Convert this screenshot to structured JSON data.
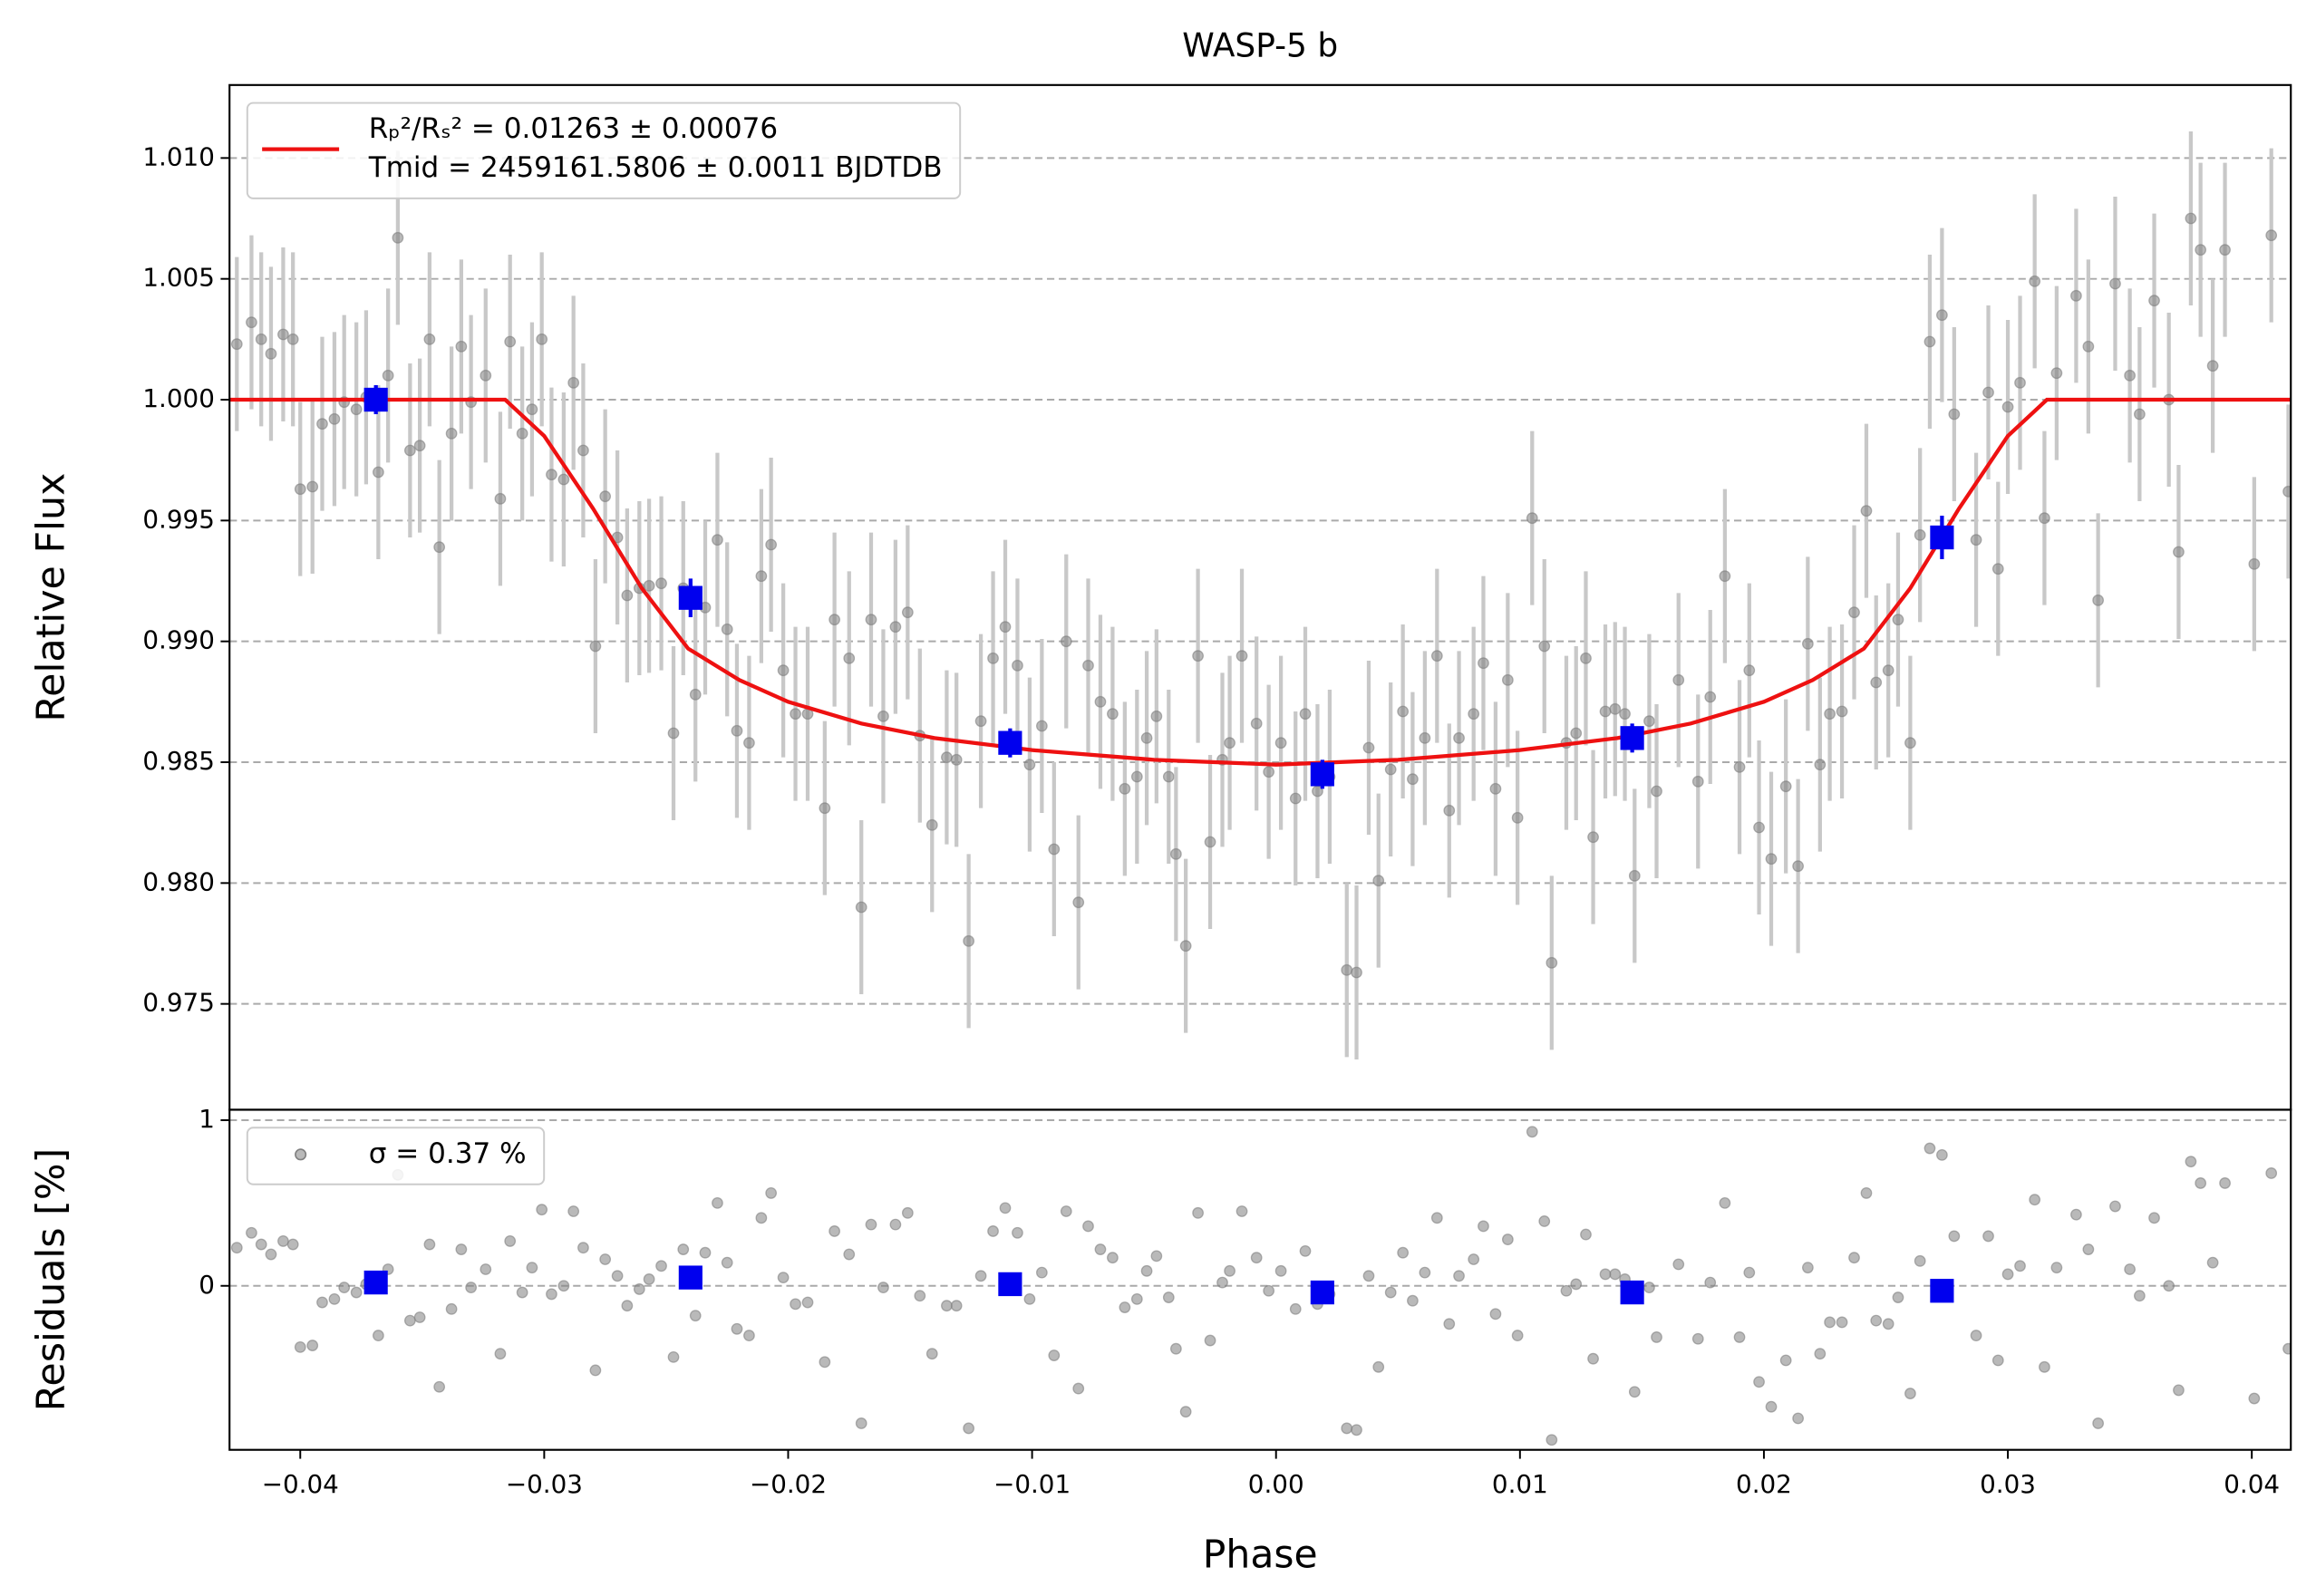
{
  "chart_data": [
    {
      "type": "scatter",
      "title": "WASP-5 b",
      "ylabel": "Relative Flux",
      "grid": true,
      "legend": "upper left",
      "xlim": [
        -0.0429,
        0.0416
      ],
      "ylim": [
        0.97062,
        1.01302
      ],
      "yticks": [
        0.975,
        {
          "value": 0.98,
          "label": "0.980"
        },
        0.985,
        {
          "value": 0.99,
          "label": "0.990"
        },
        0.995,
        {
          "value": 1.0,
          "label": "1.000"
        },
        1.005,
        {
          "value": 1.01,
          "label": "1.010"
        }
      ],
      "series": [
        {
          "type": "scatter",
          "marker": "circle",
          "color": "#808080",
          "errcolor": "#c8c8c8",
          "yerr": 0.0036,
          "x": [
            -0.0426,
            -0.042,
            -0.0416,
            -0.0412,
            -0.0407,
            -0.0403,
            -0.04,
            -0.0395,
            -0.0391,
            -0.0386,
            -0.0382,
            -0.0377,
            -0.0373,
            -0.0368,
            -0.0364,
            -0.036,
            -0.0355,
            -0.0351,
            -0.0347,
            -0.0343,
            -0.0338,
            -0.0334,
            -0.033,
            -0.0324,
            -0.0318,
            -0.0314,
            -0.0309,
            -0.0305,
            -0.0301,
            -0.0297,
            -0.0292,
            -0.0288,
            -0.0284,
            -0.0279,
            -0.0275,
            -0.027,
            -0.0266,
            -0.0261,
            -0.0257,
            -0.0252,
            -0.0247,
            -0.0243,
            -0.0238,
            -0.0234,
            -0.0229,
            -0.0225,
            -0.0221,
            -0.0216,
            -0.0211,
            -0.0207,
            -0.0202,
            -0.0197,
            -0.0192,
            -0.0185,
            -0.0181,
            -0.0175,
            -0.017,
            -0.0166,
            -0.0161,
            -0.0156,
            -0.0151,
            -0.0146,
            -0.0141,
            -0.0135,
            -0.0131,
            -0.0126,
            -0.0121,
            -0.0116,
            -0.0111,
            -0.0106,
            -0.0101,
            -0.0096,
            -0.0091,
            -0.0086,
            -0.0081,
            -0.0077,
            -0.0072,
            -0.0067,
            -0.0062,
            -0.0057,
            -0.0053,
            -0.0049,
            -0.0044,
            -0.0041,
            -0.0037,
            -0.0032,
            -0.0027,
            -0.0022,
            -0.0019,
            -0.0014,
            -0.0008,
            -0.0003,
            0.0002,
            0.0008,
            0.0012,
            0.0017,
            0.0022,
            0.0029,
            0.0033,
            0.0038,
            0.0042,
            0.0047,
            0.0052,
            0.0056,
            0.0061,
            0.0066,
            0.0071,
            0.0075,
            0.0081,
            0.0085,
            0.009,
            0.0095,
            0.0099,
            0.0105,
            0.011,
            0.0113,
            0.0119,
            0.0123,
            0.0127,
            0.013,
            0.0135,
            0.0139,
            0.0143,
            0.0147,
            0.0153,
            0.0156,
            0.0165,
            0.0173,
            0.0178,
            0.0184,
            0.019,
            0.0194,
            0.0198,
            0.0203,
            0.0209,
            0.0214,
            0.0218,
            0.0223,
            0.0227,
            0.0232,
            0.0237,
            0.0242,
            0.0246,
            0.0251,
            0.0255,
            0.026,
            0.0264,
            0.0268,
            0.0273,
            0.0278,
            0.0287,
            0.0292,
            0.0296,
            0.03,
            0.0305,
            0.0311,
            0.0315,
            0.032,
            0.0328,
            0.0333,
            0.0337,
            0.0344,
            0.035,
            0.0354,
            0.036,
            0.0366,
            0.037,
            0.0375,
            0.0379,
            0.0384,
            0.0389,
            0.0401,
            0.0408,
            0.0415
          ],
          "y": [
            1.0023,
            1.0032,
            1.0025,
            1.0019,
            1.0027,
            1.0025,
            0.9963,
            0.9964,
            0.999,
            0.9992,
            0.9999,
            0.9996,
            1.0001,
            0.997,
            1.001,
            1.0067,
            0.9979,
            0.9981,
            1.0025,
            0.9939,
            0.9986,
            1.0022,
            0.9999,
            1.001,
            0.9959,
            1.0024,
            0.9986,
            0.9996,
            1.0025,
            0.9969,
            0.9967,
            1.0007,
            0.9979,
            0.9898,
            0.996,
            0.9943,
            0.9919,
            0.9922,
            0.9923,
            0.9924,
            0.9862,
            0.9922,
            0.9878,
            0.9914,
            0.9942,
            0.9905,
            0.9863,
            0.9858,
            0.9927,
            0.994,
            0.9888,
            0.987,
            0.987,
            0.9831,
            0.9909,
            0.9893,
            0.979,
            0.9909,
            0.9869,
            0.9906,
            0.9912,
            0.9861,
            0.9824,
            0.9852,
            0.9851,
            0.9776,
            0.9867,
            0.9893,
            0.9906,
            0.989,
            0.9849,
            0.9865,
            0.9814,
            0.99,
            0.9792,
            0.989,
            0.9875,
            0.987,
            0.9839,
            0.9844,
            0.986,
            0.9869,
            0.9844,
            0.9812,
            0.9774,
            0.9894,
            0.9817,
            0.9851,
            0.9858,
            0.9894,
            0.9866,
            0.9846,
            0.9858,
            0.9835,
            0.987,
            0.9838,
            0.9844,
            0.9764,
            0.9763,
            0.9856,
            0.9801,
            0.9847,
            0.9871,
            0.9843,
            0.986,
            0.9894,
            0.983,
            0.986,
            0.987,
            0.9891,
            0.9839,
            0.9884,
            0.9827,
            0.9951,
            0.9898,
            0.9767,
            0.9858,
            0.9862,
            0.9893,
            0.9819,
            0.9871,
            0.9872,
            0.987,
            0.9803,
            0.9867,
            0.9838,
            0.9884,
            0.9842,
            0.9877,
            0.9927,
            0.9848,
            0.9888,
            0.9823,
            0.981,
            0.984,
            0.9807,
            0.9899,
            0.9849,
            0.987,
            0.9871,
            0.9912,
            0.9954,
            0.9883,
            0.9888,
            0.9909,
            0.9858,
            0.9944,
            1.0024,
            1.0035,
            0.9994,
            0.9942,
            1.0003,
            0.993,
            0.9997,
            1.0007,
            1.0049,
            0.9951,
            1.0011,
            1.0043,
            1.0022,
            0.9917,
            1.0048,
            1.001,
            0.9994,
            1.0041,
            1.0,
            0.9937,
            1.0075,
            1.0062,
            1.0014,
            1.0062,
            0.9932,
            1.0068,
            0.9962
          ]
        },
        {
          "type": "line",
          "color": "#ee1111",
          "name": [
            "Rₚ²/Rₛ² = 0.01263 ± 0.00076",
            "Tmid = 2459161.5806 ± 0.0011 BJDTDB"
          ],
          "x": [
            -0.0429,
            -0.0316,
            -0.03,
            -0.028,
            -0.026,
            -0.0241,
            -0.022,
            -0.02,
            -0.017,
            -0.014,
            -0.01,
            -0.005,
            0,
            0.005,
            0.01,
            0.014,
            0.017,
            0.02,
            0.022,
            0.0241,
            0.026,
            0.028,
            0.03,
            0.0316,
            0.0416
          ],
          "y": [
            1.0,
            1.0,
            0.9985,
            0.9955,
            0.9922,
            0.9897,
            0.9884,
            0.9875,
            0.9866,
            0.986,
            0.9855,
            0.9851,
            0.9849,
            0.9851,
            0.9855,
            0.986,
            0.9866,
            0.9875,
            0.9884,
            0.9897,
            0.9922,
            0.9955,
            0.9985,
            1.0,
            1.0
          ]
        },
        {
          "type": "scatter",
          "marker": "square",
          "color": "#0000ee",
          "errcolor": "#0000ee",
          "x": [
            -0.0369,
            -0.024,
            -0.0109,
            0.0019,
            0.0146,
            0.0273
          ],
          "y": [
            1.0,
            0.9918,
            0.9858,
            0.9845,
            0.986,
            0.9943
          ],
          "yerr": [
            0.0006,
            0.0008,
            0.0006,
            0.0006,
            0.0006,
            0.0009
          ]
        }
      ]
    },
    {
      "type": "scatter",
      "ylabel": "Residuals [%]",
      "xlabel": "Phase",
      "grid": true,
      "legend": "upper left",
      "xlim": [
        -0.0429,
        0.0416
      ],
      "ylim": [
        -0.99,
        1.063
      ],
      "yticks": [
        0,
        1
      ],
      "xticks": [
        {
          "value": -0.04,
          "label": "−0.04"
        },
        {
          "value": -0.03,
          "label": "−0.03"
        },
        {
          "value": -0.02,
          "label": "−0.02"
        },
        {
          "value": -0.01,
          "label": "−0.01"
        },
        {
          "value": 0,
          "label": "0.00"
        },
        0.01,
        0.02,
        0.03,
        0.04
      ],
      "series": [
        {
          "type": "scatter",
          "marker": "circle",
          "color": "#808080",
          "name": [
            "σ = 0.37 %"
          ],
          "x": [
            -0.0426,
            -0.042,
            -0.0416,
            -0.0412,
            -0.0407,
            -0.0403,
            -0.04,
            -0.0395,
            -0.0391,
            -0.0386,
            -0.0382,
            -0.0377,
            -0.0373,
            -0.0368,
            -0.0364,
            -0.036,
            -0.0355,
            -0.0351,
            -0.0347,
            -0.0343,
            -0.0338,
            -0.0334,
            -0.033,
            -0.0324,
            -0.0318,
            -0.0314,
            -0.0309,
            -0.0305,
            -0.0301,
            -0.0297,
            -0.0292,
            -0.0288,
            -0.0284,
            -0.0279,
            -0.0275,
            -0.027,
            -0.0266,
            -0.0261,
            -0.0257,
            -0.0252,
            -0.0247,
            -0.0243,
            -0.0238,
            -0.0234,
            -0.0229,
            -0.0225,
            -0.0221,
            -0.0216,
            -0.0211,
            -0.0207,
            -0.0202,
            -0.0197,
            -0.0192,
            -0.0185,
            -0.0181,
            -0.0175,
            -0.017,
            -0.0166,
            -0.0161,
            -0.0156,
            -0.0151,
            -0.0146,
            -0.0141,
            -0.0135,
            -0.0131,
            -0.0126,
            -0.0121,
            -0.0116,
            -0.0111,
            -0.0106,
            -0.0101,
            -0.0096,
            -0.0091,
            -0.0086,
            -0.0081,
            -0.0077,
            -0.0072,
            -0.0067,
            -0.0062,
            -0.0057,
            -0.0053,
            -0.0049,
            -0.0044,
            -0.0041,
            -0.0037,
            -0.0032,
            -0.0027,
            -0.0022,
            -0.0019,
            -0.0014,
            -0.0008,
            -0.0003,
            0.0002,
            0.0008,
            0.0012,
            0.0017,
            0.0022,
            0.0029,
            0.0033,
            0.0038,
            0.0042,
            0.0047,
            0.0052,
            0.0056,
            0.0061,
            0.0066,
            0.0071,
            0.0075,
            0.0081,
            0.0085,
            0.009,
            0.0095,
            0.0099,
            0.0105,
            0.011,
            0.0113,
            0.0119,
            0.0123,
            0.0127,
            0.013,
            0.0135,
            0.0139,
            0.0143,
            0.0147,
            0.0153,
            0.0156,
            0.0165,
            0.0173,
            0.0178,
            0.0184,
            0.019,
            0.0194,
            0.0198,
            0.0203,
            0.0209,
            0.0214,
            0.0218,
            0.0223,
            0.0227,
            0.0232,
            0.0237,
            0.0242,
            0.0246,
            0.0251,
            0.0255,
            0.026,
            0.0264,
            0.0268,
            0.0273,
            0.0278,
            0.0287,
            0.0292,
            0.0296,
            0.03,
            0.0305,
            0.0311,
            0.0315,
            0.032,
            0.0328,
            0.0333,
            0.0337,
            0.0344,
            0.035,
            0.0354,
            0.036,
            0.0366,
            0.037,
            0.0375,
            0.0379,
            0.0384,
            0.0389,
            0.0401,
            0.0408,
            0.0415
          ],
          "y": [
            0.23,
            0.32,
            0.25,
            0.19,
            0.27,
            0.25,
            -0.37,
            -0.36,
            -0.1,
            -0.08,
            -0.01,
            -0.04,
            0.01,
            -0.3,
            0.1,
            0.67,
            -0.21,
            -0.19,
            0.25,
            -0.61,
            -0.14,
            0.22,
            -0.01,
            0.1,
            -0.41,
            0.27,
            -0.04,
            0.11,
            0.46,
            -0.05,
            0.0,
            0.45,
            0.23,
            -0.51,
            0.16,
            0.06,
            -0.12,
            -0.02,
            0.04,
            0.12,
            -0.43,
            0.22,
            -0.18,
            0.2,
            0.5,
            0.14,
            -0.26,
            -0.3,
            0.41,
            0.56,
            0.05,
            -0.11,
            -0.1,
            -0.46,
            0.33,
            0.19,
            -0.83,
            0.37,
            -0.01,
            0.37,
            0.44,
            -0.06,
            -0.41,
            -0.12,
            -0.12,
            -0.86,
            0.06,
            0.33,
            0.47,
            0.32,
            -0.08,
            0.08,
            -0.42,
            0.45,
            -0.62,
            0.36,
            0.22,
            0.17,
            -0.13,
            -0.08,
            0.09,
            0.18,
            -0.07,
            -0.38,
            -0.76,
            0.44,
            -0.33,
            0.02,
            0.09,
            0.45,
            0.17,
            -0.03,
            0.09,
            -0.14,
            0.21,
            -0.11,
            -0.05,
            -0.86,
            -0.87,
            0.06,
            -0.49,
            -0.04,
            0.2,
            -0.09,
            0.08,
            0.41,
            -0.23,
            0.06,
            0.16,
            0.36,
            -0.17,
            0.28,
            -0.3,
            0.93,
            0.39,
            -0.93,
            -0.03,
            0.01,
            0.31,
            -0.44,
            0.07,
            0.07,
            0.04,
            -0.64,
            -0.01,
            -0.31,
            0.13,
            -0.32,
            0.02,
            0.5,
            -0.31,
            0.08,
            -0.58,
            -0.73,
            -0.45,
            -0.8,
            0.11,
            -0.41,
            -0.22,
            -0.22,
            0.17,
            0.56,
            -0.21,
            -0.23,
            -0.07,
            -0.65,
            0.15,
            0.83,
            0.79,
            0.3,
            -0.3,
            0.3,
            -0.45,
            0.07,
            0.12,
            0.52,
            -0.49,
            0.11,
            0.43,
            0.22,
            -0.83,
            0.48,
            0.1,
            -0.06,
            0.41,
            0.0,
            -0.63,
            0.75,
            0.62,
            0.14,
            0.62,
            -0.68,
            0.68,
            -0.38
          ]
        },
        {
          "type": "scatter",
          "marker": "square",
          "color": "#0000ee",
          "x": [
            -0.0369,
            -0.024,
            -0.0109,
            0.0019,
            0.0146,
            0.0273
          ],
          "y": [
            0.02,
            0.05,
            0.01,
            -0.04,
            -0.04,
            -0.03
          ]
        }
      ]
    }
  ]
}
